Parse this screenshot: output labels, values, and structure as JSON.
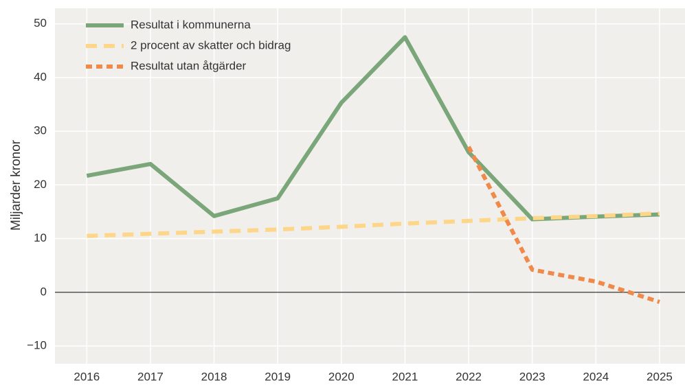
{
  "chart_data": {
    "type": "line",
    "ylabel": "Miljarder kronor",
    "x": [
      2016,
      2017,
      2018,
      2019,
      2020,
      2021,
      2022,
      2023,
      2024,
      2025
    ],
    "xlim": [
      2015.5,
      2025.4
    ],
    "xticks": [
      2016,
      2017,
      2018,
      2019,
      2020,
      2021,
      2022,
      2023,
      2024,
      2025
    ],
    "ylim": [
      -13.3,
      52.9
    ],
    "yticks": [
      {
        "value": -10,
        "label": "−10"
      },
      0,
      10,
      20,
      30,
      40,
      50
    ],
    "grid": true,
    "legend": "upper left",
    "series": [
      {
        "name": "Resultat i kommunerna",
        "color": "#7aa67a",
        "style": "solid",
        "values": [
          21.7,
          23.9,
          14.2,
          17.5,
          35.3,
          47.5,
          26.1,
          13.6,
          14.1,
          14.5
        ]
      },
      {
        "name": "2 procent av skatter och bidrag",
        "color": "#fdd68a",
        "style": "dashed",
        "values": [
          10.5,
          10.9,
          11.3,
          11.7,
          12.2,
          12.8,
          13.3,
          13.8,
          14.2,
          14.7
        ]
      },
      {
        "name": "Resultat utan åtgärder",
        "color": "#f08a4b",
        "style": "dotted",
        "values": [
          null,
          null,
          null,
          null,
          null,
          null,
          27.1,
          4.2,
          2.0,
          -1.8
        ]
      }
    ]
  }
}
